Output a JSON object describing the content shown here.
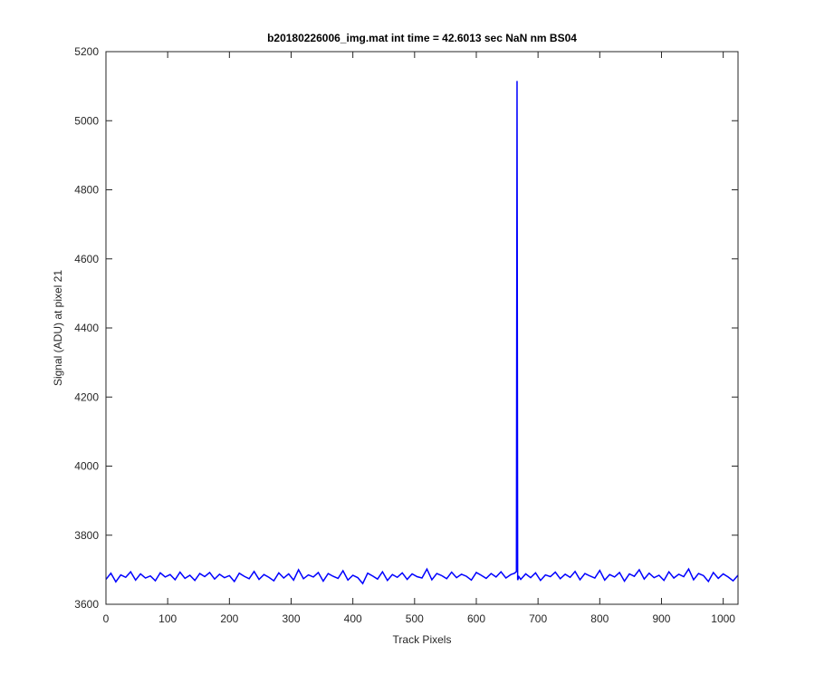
{
  "chart_data": {
    "type": "line",
    "title": "b20180226006_img.mat int time = 42.6013 sec  NaN nm BS04",
    "xlabel": "Track Pixels",
    "ylabel": "Signal (ADU) at pixel 21",
    "color": "#0000ff",
    "xlim": [
      0,
      1024
    ],
    "ylim": [
      3600,
      5200
    ],
    "xticks": [
      0,
      100,
      200,
      300,
      400,
      500,
      600,
      700,
      800,
      900,
      1000
    ],
    "yticks": [
      3600,
      3800,
      4000,
      4200,
      4400,
      4600,
      4800,
      5000,
      5200
    ],
    "x": [
      0,
      8,
      16,
      24,
      32,
      40,
      48,
      56,
      64,
      72,
      80,
      88,
      96,
      104,
      112,
      120,
      128,
      136,
      144,
      152,
      160,
      168,
      176,
      184,
      192,
      200,
      208,
      216,
      224,
      232,
      240,
      248,
      256,
      264,
      272,
      280,
      288,
      296,
      304,
      312,
      320,
      328,
      336,
      344,
      352,
      360,
      368,
      376,
      384,
      392,
      400,
      408,
      416,
      424,
      432,
      440,
      448,
      456,
      464,
      472,
      480,
      488,
      496,
      504,
      512,
      520,
      528,
      536,
      544,
      552,
      560,
      568,
      576,
      584,
      592,
      600,
      608,
      616,
      624,
      632,
      640,
      648,
      656,
      662,
      665,
      666,
      667,
      669,
      672,
      680,
      688,
      696,
      704,
      712,
      720,
      728,
      736,
      744,
      752,
      760,
      768,
      776,
      784,
      792,
      800,
      808,
      816,
      824,
      832,
      840,
      848,
      856,
      864,
      872,
      880,
      888,
      896,
      904,
      912,
      920,
      928,
      936,
      944,
      952,
      960,
      968,
      976,
      984,
      992,
      1000,
      1008,
      1016,
      1024
    ],
    "values": [
      3672,
      3690,
      3665,
      3685,
      3678,
      3694,
      3670,
      3688,
      3676,
      3682,
      3668,
      3691,
      3679,
      3686,
      3671,
      3693,
      3675,
      3684,
      3669,
      3689,
      3680,
      3692,
      3673,
      3687,
      3677,
      3683,
      3666,
      3690,
      3681,
      3674,
      3695,
      3672,
      3686,
      3678,
      3668,
      3691,
      3676,
      3688,
      3670,
      3700,
      3674,
      3685,
      3679,
      3692,
      3667,
      3689,
      3681,
      3675,
      3697,
      3670,
      3684,
      3677,
      3660,
      3690,
      3682,
      3673,
      3694,
      3669,
      3686,
      3678,
      3691,
      3672,
      3688,
      3680,
      3676,
      3702,
      3671,
      3689,
      3683,
      3674,
      3693,
      3677,
      3687,
      3681,
      3670,
      3692,
      3684,
      3675,
      3689,
      3679,
      3694,
      3676,
      3686,
      3690,
      3695,
      5115,
      3670,
      3680,
      3672,
      3688,
      3677,
      3691,
      3669,
      3685,
      3680,
      3693,
      3674,
      3687,
      3678,
      3695,
      3671,
      3689,
      3682,
      3676,
      3698,
      3670,
      3686,
      3679,
      3692,
      3667,
      3688,
      3681,
      3700,
      3673,
      3690,
      3677,
      3684,
      3669,
      3694,
      3676,
      3687,
      3680,
      3702,
      3671,
      3689,
      3683,
      3666,
      3692,
      3675,
      3688,
      3679,
      3668,
      3684
    ]
  }
}
